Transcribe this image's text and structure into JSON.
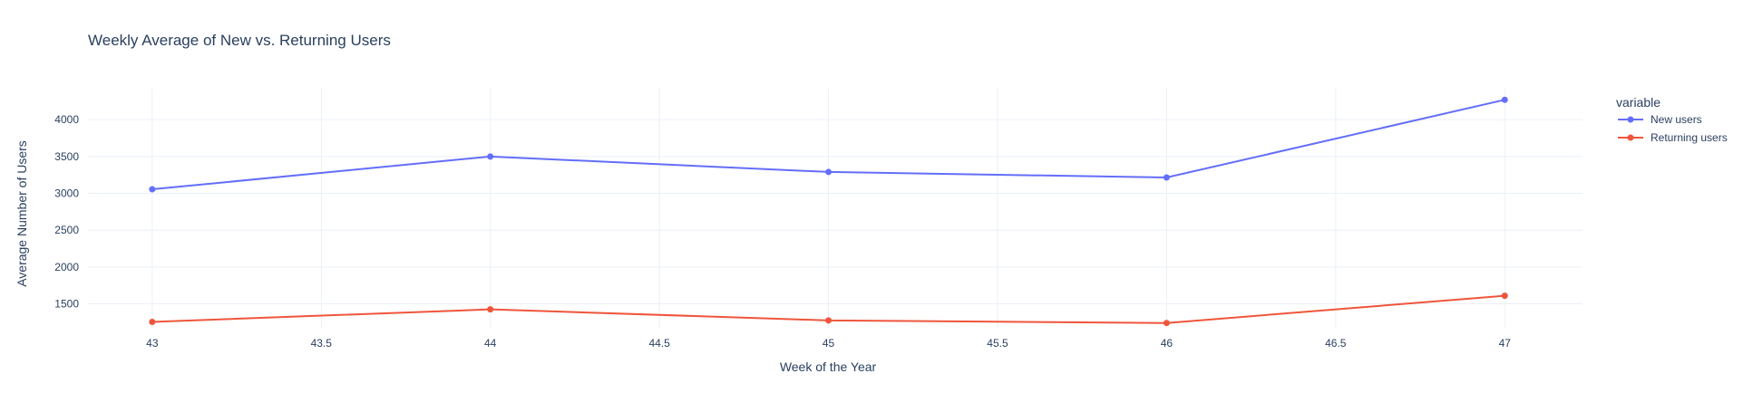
{
  "chart_data": {
    "type": "line",
    "title": "Weekly Average of New vs. Returning Users",
    "xlabel": "Week of the Year",
    "ylabel": "Average Number of Users",
    "x": [
      43,
      44,
      45,
      46,
      47
    ],
    "xlim": [
      42.81,
      47.23
    ],
    "ylim": [
      1175,
      4420
    ],
    "x_ticks": [
      "43",
      "43.5",
      "44",
      "44.5",
      "45",
      "45.5",
      "46",
      "46.5",
      "47"
    ],
    "y_ticks": [
      "1500",
      "2000",
      "2500",
      "3000",
      "3500",
      "4000"
    ],
    "grid": true,
    "legend": {
      "title": "variable",
      "position": "top-right"
    },
    "series": [
      {
        "name": "New users",
        "color": "#636efa",
        "values": [
          3055,
          3500,
          3290,
          3215,
          4270
        ]
      },
      {
        "name": "Returning users",
        "color": "#ef553b",
        "values": [
          1255,
          1425,
          1275,
          1240,
          1610
        ]
      }
    ]
  }
}
